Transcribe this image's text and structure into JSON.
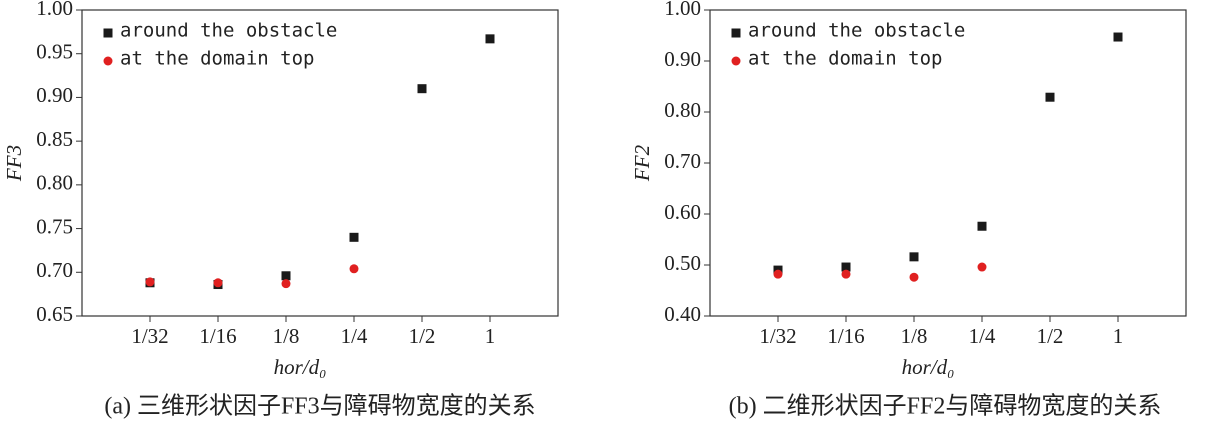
{
  "chart_data": [
    {
      "type": "scatter",
      "xlabel": "hor/d₀",
      "ylabel": "FF3",
      "caption": "(a) 三维形状因子FF3与障碍物宽度的关系",
      "categories": [
        "1/32",
        "1/16",
        "1/8",
        "1/4",
        "1/2",
        "1"
      ],
      "ylim": [
        0.65,
        1.0
      ],
      "yticks": [
        {
          "value": 0.65,
          "label": "0.65"
        },
        {
          "value": 0.7,
          "label": "0.70"
        },
        {
          "value": 0.75,
          "label": "0.75"
        },
        {
          "value": 0.8,
          "label": "0.80"
        },
        {
          "value": 0.85,
          "label": "0.85"
        },
        {
          "value": 0.9,
          "label": "0.90"
        },
        {
          "value": 0.95,
          "label": "0.95"
        },
        {
          "value": 1.0,
          "label": "1.00"
        }
      ],
      "legend": "upper left",
      "series": [
        {
          "name": "around the obstacle",
          "color": "#1a1a1a",
          "marker": "square",
          "values": [
            0.688,
            0.686,
            0.696,
            0.74,
            0.91,
            0.967
          ]
        },
        {
          "name": "at the domain top",
          "color": "#e02020",
          "marker": "circle",
          "values": [
            0.689,
            0.688,
            0.687,
            0.704
          ]
        }
      ]
    },
    {
      "type": "scatter",
      "xlabel": "hor/d₀",
      "ylabel": "FF2",
      "caption": "(b) 二维形状因子FF2与障碍物宽度的关系",
      "categories": [
        "1/32",
        "1/16",
        "1/8",
        "1/4",
        "1/2",
        "1"
      ],
      "ylim": [
        0.4,
        1.0
      ],
      "yticks": [
        {
          "value": 0.4,
          "label": "0.40"
        },
        {
          "value": 0.5,
          "label": "0.50"
        },
        {
          "value": 0.6,
          "label": "0.60"
        },
        {
          "value": 0.7,
          "label": "0.70"
        },
        {
          "value": 0.8,
          "label": "0.80"
        },
        {
          "value": 0.9,
          "label": "0.90"
        },
        {
          "value": 1.0,
          "label": "1.00"
        }
      ],
      "legend": "upper left",
      "series": [
        {
          "name": "around the obstacle",
          "color": "#1a1a1a",
          "marker": "square",
          "values": [
            0.49,
            0.496,
            0.516,
            0.576,
            0.829,
            0.947
          ]
        },
        {
          "name": "at the domain top",
          "color": "#e02020",
          "marker": "circle",
          "values": [
            0.482,
            0.482,
            0.476,
            0.496
          ]
        }
      ]
    }
  ]
}
